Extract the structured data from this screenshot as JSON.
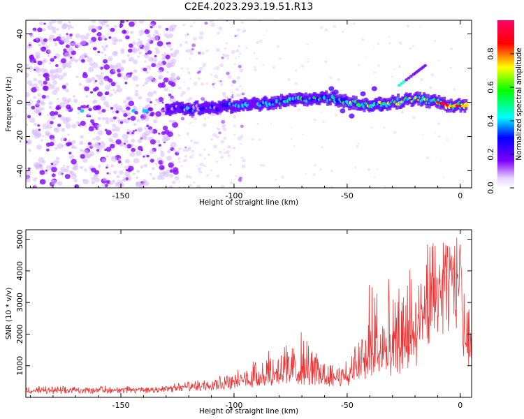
{
  "chart_data": [
    {
      "id": "spectrogram",
      "type": "heatmap",
      "title": "C2E4.2023.293.19.51.R13",
      "xlabel": "Height of straight line (km)",
      "ylabel": "Frequency (Hz)",
      "xlim": [
        -192,
        5
      ],
      "ylim": [
        -50,
        48
      ],
      "xticks": [
        -150,
        -100,
        -50,
        0
      ],
      "xtick_labels": [
        "-150",
        "-100",
        "-50",
        "0"
      ],
      "yticks": [
        40,
        20,
        0,
        -20,
        -40
      ],
      "ytick_labels": [
        "40",
        "20",
        "0",
        "-20",
        "-40"
      ],
      "colorbar": {
        "label": "Normalized spectral amplitude",
        "range": [
          0,
          1
        ],
        "ticks": [
          0.0,
          0.2,
          0.4,
          0.6,
          0.8
        ],
        "tick_labels": [
          "0.0",
          "0.2",
          "0.4",
          "0.6",
          "0.8"
        ],
        "colormap": [
          "#f0e0ff",
          "#8000ff",
          "#0000ff",
          "#00ffff",
          "#00ff00",
          "#ffff00",
          "#ff0000",
          "#ff0066"
        ]
      },
      "signal_band": {
        "description": "narrow band near 0 Hz",
        "center_hz": [
          [
            -130,
            -4
          ],
          [
            -110,
            -3
          ],
          [
            -90,
            -1
          ],
          [
            -75,
            1
          ],
          [
            -60,
            3
          ],
          [
            -50,
            0
          ],
          [
            -40,
            -2
          ],
          [
            -30,
            0
          ],
          [
            -20,
            2
          ],
          [
            -10,
            0
          ],
          [
            -5,
            -2
          ],
          [
            3,
            -2
          ]
        ],
        "branch_hz": [
          [
            -27,
            10
          ],
          [
            -20,
            17
          ],
          [
            -15,
            22
          ]
        ],
        "peak_amplitude": 0.95
      },
      "noise": {
        "description": "scattered low-amplitude blobs",
        "dense_region_x": [
          -192,
          -125
        ],
        "sparse_region_x": [
          -125,
          -95
        ]
      }
    },
    {
      "id": "snr",
      "type": "line",
      "title": "",
      "xlabel": "Height of straight line (km)",
      "ylabel": "SNR (10 * v/v)",
      "xlim": [
        -192,
        5
      ],
      "ylim": [
        0,
        5300
      ],
      "xticks": [
        -150,
        -100,
        -50,
        0
      ],
      "xtick_labels": [
        "-150",
        "-100",
        "-50",
        "0"
      ],
      "yticks": [
        1000,
        2000,
        3000,
        4000,
        5000
      ],
      "ytick_labels": [
        "1000",
        "2000",
        "3000",
        "4000",
        "5000"
      ],
      "series": [
        {
          "name": "SNR",
          "color": "#ee3333",
          "x": [
            -192,
            -180,
            -170,
            -160,
            -150,
            -140,
            -130,
            -120,
            -110,
            -100,
            -95,
            -90,
            -85,
            -80,
            -75,
            -70,
            -65,
            -60,
            -55,
            -50,
            -45,
            -40,
            -35,
            -30,
            -25,
            -20,
            -15,
            -10,
            -5,
            0,
            2,
            5
          ],
          "baseline": [
            180,
            180,
            190,
            200,
            200,
            210,
            230,
            280,
            380,
            420,
            470,
            500,
            590,
            680,
            700,
            640,
            610,
            570,
            550,
            560,
            740,
            1100,
            1150,
            1020,
            1300,
            1500,
            2500,
            3000,
            3300,
            3500,
            1600,
            1700
          ],
          "peak": [
            350,
            350,
            350,
            380,
            350,
            360,
            400,
            520,
            650,
            750,
            1100,
            1550,
            1750,
            1900,
            1700,
            2100,
            1600,
            1200,
            1200,
            1200,
            1900,
            3900,
            4300,
            3500,
            3700,
            4900,
            5100,
            4800,
            5000,
            5300,
            3100,
            2900
          ]
        }
      ]
    }
  ]
}
